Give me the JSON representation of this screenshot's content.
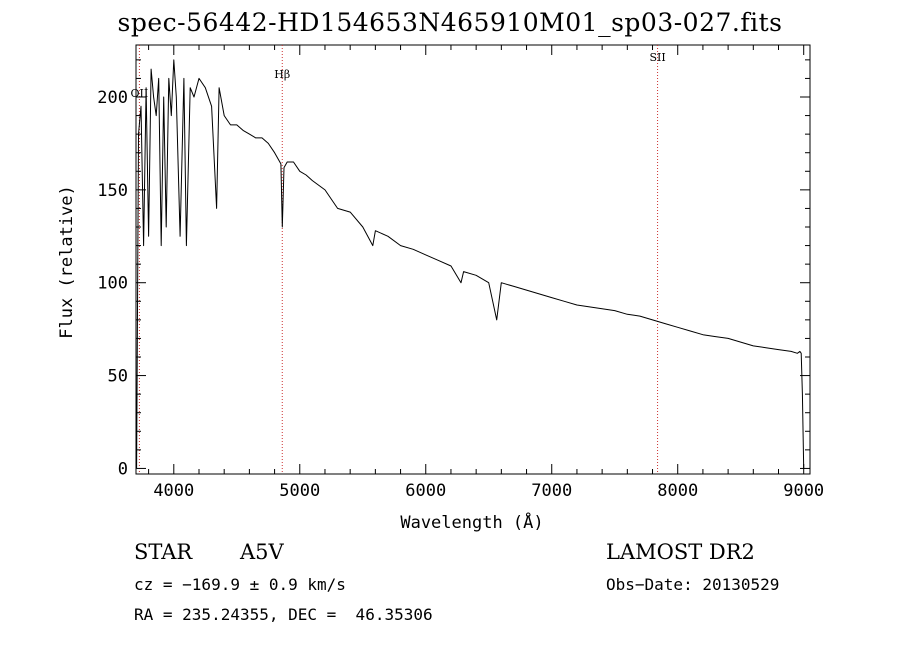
{
  "chart_data": {
    "type": "line",
    "title": "spec-56442-HD154653N465910M01_sp03-027.fits",
    "xlabel": "Wavelength (Å)",
    "ylabel": "Flux (relative)",
    "xlim": [
      3700,
      9050
    ],
    "ylim": [
      -3,
      228
    ],
    "xticks": [
      4000,
      5000,
      6000,
      7000,
      8000,
      9000
    ],
    "yticks": [
      0,
      50,
      100,
      150,
      200
    ],
    "line_color": "#000000",
    "marker_color": "#cc3333",
    "lines": [
      {
        "label": "OII",
        "x": 3727
      },
      {
        "label": "Hβ",
        "x": 4861
      },
      {
        "label": "SII",
        "x": 7840
      }
    ],
    "series": [
      {
        "x": [
          3705,
          3720,
          3740,
          3760,
          3780,
          3800,
          3820,
          3840,
          3860,
          3880,
          3900,
          3920,
          3940,
          3960,
          3980,
          4000,
          4020,
          4050,
          4080,
          4100,
          4130,
          4160,
          4200,
          4250,
          4300,
          4340,
          4360,
          4400,
          4450,
          4500,
          4550,
          4600,
          4650,
          4700,
          4750,
          4800,
          4850,
          4861,
          4875,
          4900,
          4950,
          5000,
          5050,
          5100,
          5200,
          5300,
          5400,
          5500,
          5580,
          5600,
          5700,
          5800,
          5900,
          6000,
          6100,
          6200,
          6280,
          6300,
          6400,
          6500,
          6563,
          6600,
          6700,
          6800,
          6900,
          7000,
          7100,
          7200,
          7300,
          7400,
          7500,
          7600,
          7700,
          7800,
          7900,
          8000,
          8100,
          8200,
          8300,
          8400,
          8500,
          8600,
          8700,
          8800,
          8900,
          8950,
          8970,
          8980,
          8990,
          9000
        ],
        "y": [
          0,
          180,
          195,
          120,
          205,
          125,
          215,
          200,
          190,
          210,
          120,
          200,
          130,
          210,
          190,
          220,
          200,
          125,
          210,
          120,
          205,
          200,
          210,
          205,
          195,
          140,
          205,
          190,
          185,
          185,
          182,
          180,
          178,
          178,
          175,
          170,
          164,
          130,
          162,
          165,
          165,
          160,
          158,
          155,
          150,
          140,
          138,
          130,
          120,
          128,
          125,
          120,
          118,
          115,
          112,
          109,
          100,
          106,
          104,
          100,
          80,
          100,
          98,
          96,
          94,
          92,
          90,
          88,
          87,
          86,
          85,
          83,
          82,
          80,
          78,
          76,
          74,
          72,
          71,
          70,
          68,
          66,
          65,
          64,
          63,
          62,
          63,
          62,
          40,
          0
        ]
      }
    ]
  },
  "info": {
    "class_label": "STAR",
    "subclass": "A5V",
    "survey": "LAMOST DR2",
    "cz": "cz = −169.9 ± 0.9 km/s",
    "obs_date": "Obs−Date: 20130529",
    "coords": "RA = 235.24355, DEC =  46.35306"
  }
}
